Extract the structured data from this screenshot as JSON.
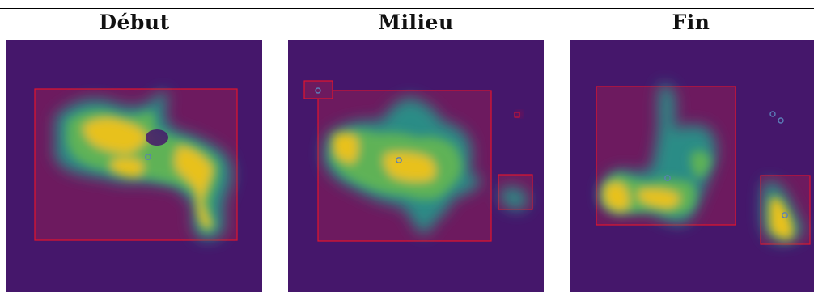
{
  "headers": [
    "Début",
    "Milieu",
    "Fin"
  ],
  "colors": {
    "background": "#45176b",
    "box_fill": "#6d1a5f",
    "box_stroke": "#e3142c",
    "blob_teal": "#2a8c86",
    "blob_green": "#5fb257",
    "blob_yellow": "#e8c11a",
    "centroid": "#5b7fb8"
  }
}
